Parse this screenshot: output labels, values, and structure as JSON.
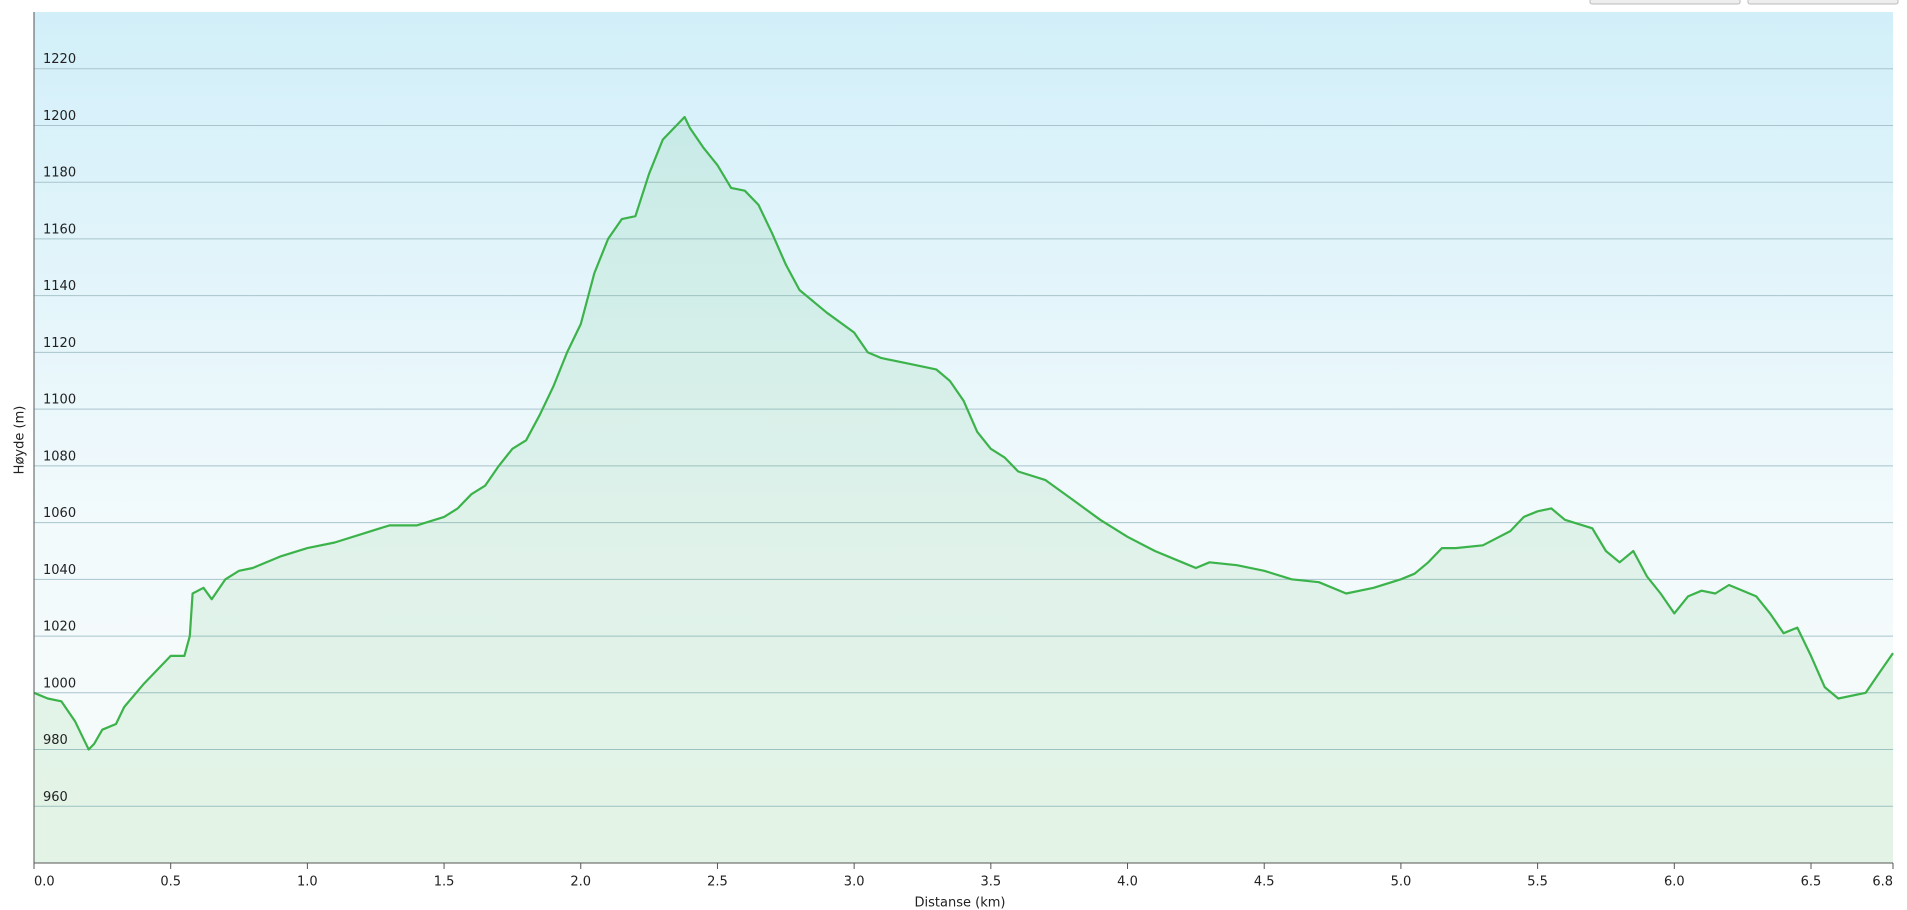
{
  "chart_data": {
    "type": "area",
    "x_label": "Distanse (km)",
    "y_label": "Høyde (m)",
    "x": [
      0.0,
      0.05,
      0.1,
      0.15,
      0.18,
      0.2,
      0.22,
      0.25,
      0.3,
      0.33,
      0.4,
      0.45,
      0.5,
      0.55,
      0.57,
      0.58,
      0.62,
      0.65,
      0.7,
      0.75,
      0.8,
      0.9,
      1.0,
      1.1,
      1.2,
      1.3,
      1.4,
      1.5,
      1.55,
      1.6,
      1.65,
      1.7,
      1.75,
      1.8,
      1.85,
      1.9,
      1.95,
      2.0,
      2.05,
      2.1,
      2.15,
      2.2,
      2.25,
      2.3,
      2.35,
      2.38,
      2.4,
      2.45,
      2.5,
      2.55,
      2.6,
      2.65,
      2.7,
      2.75,
      2.8,
      2.9,
      3.0,
      3.05,
      3.1,
      3.2,
      3.3,
      3.35,
      3.4,
      3.45,
      3.5,
      3.55,
      3.6,
      3.7,
      3.8,
      3.9,
      4.0,
      4.1,
      4.2,
      4.25,
      4.3,
      4.4,
      4.5,
      4.6,
      4.7,
      4.8,
      4.9,
      5.0,
      5.05,
      5.1,
      5.15,
      5.2,
      5.3,
      5.4,
      5.45,
      5.5,
      5.55,
      5.6,
      5.7,
      5.75,
      5.8,
      5.85,
      5.9,
      5.95,
      6.0,
      6.05,
      6.1,
      6.15,
      6.2,
      6.3,
      6.35,
      6.4,
      6.45,
      6.5,
      6.55,
      6.6,
      6.7,
      6.75,
      6.8
    ],
    "series": [
      {
        "color": "#3cb34a",
        "values": [
          1000,
          998,
          997,
          990,
          984,
          980,
          982,
          987,
          989,
          995,
          1003,
          1008,
          1013,
          1013,
          1020,
          1035,
          1037,
          1033,
          1040,
          1043,
          1044,
          1048,
          1051,
          1053,
          1056,
          1059,
          1059,
          1062,
          1065,
          1070,
          1073,
          1080,
          1086,
          1089,
          1098,
          1108,
          1120,
          1130,
          1148,
          1160,
          1167,
          1168,
          1183,
          1195,
          1200,
          1203,
          1199,
          1192,
          1186,
          1178,
          1177,
          1172,
          1162,
          1151,
          1142,
          1134,
          1127,
          1120,
          1118,
          1116,
          1114,
          1110,
          1103,
          1092,
          1086,
          1083,
          1078,
          1075,
          1068,
          1061,
          1055,
          1050,
          1046,
          1044,
          1046,
          1045,
          1043,
          1040,
          1039,
          1035,
          1037,
          1040,
          1042,
          1046,
          1051,
          1051,
          1052,
          1057,
          1062,
          1064,
          1065,
          1061,
          1058,
          1050,
          1046,
          1050,
          1041,
          1035,
          1028,
          1034,
          1036,
          1035,
          1038,
          1034,
          1028,
          1021,
          1023,
          1013,
          1002,
          998,
          1000,
          1007,
          1014
        ]
      }
    ],
    "xlim": [
      0,
      6.8
    ],
    "ylim": [
      940,
      1240
    ],
    "xticks": [
      {
        "value": 0,
        "label": "0.0"
      },
      0.5,
      {
        "value": 1,
        "label": "1.0"
      },
      1.5,
      {
        "value": 2,
        "label": "2.0"
      },
      2.5,
      {
        "value": 3,
        "label": "3.0"
      },
      3.5,
      {
        "value": 4,
        "label": "4.0"
      },
      4.5,
      {
        "value": 5,
        "label": "5.0"
      },
      5.5,
      {
        "value": 6,
        "label": "6.0"
      },
      6.5,
      6.8
    ],
    "yticks": [
      960,
      980,
      1000,
      1020,
      1040,
      1060,
      1080,
      1100,
      1120,
      1140,
      1160,
      1180,
      1200,
      1220
    ],
    "grid": true
  }
}
